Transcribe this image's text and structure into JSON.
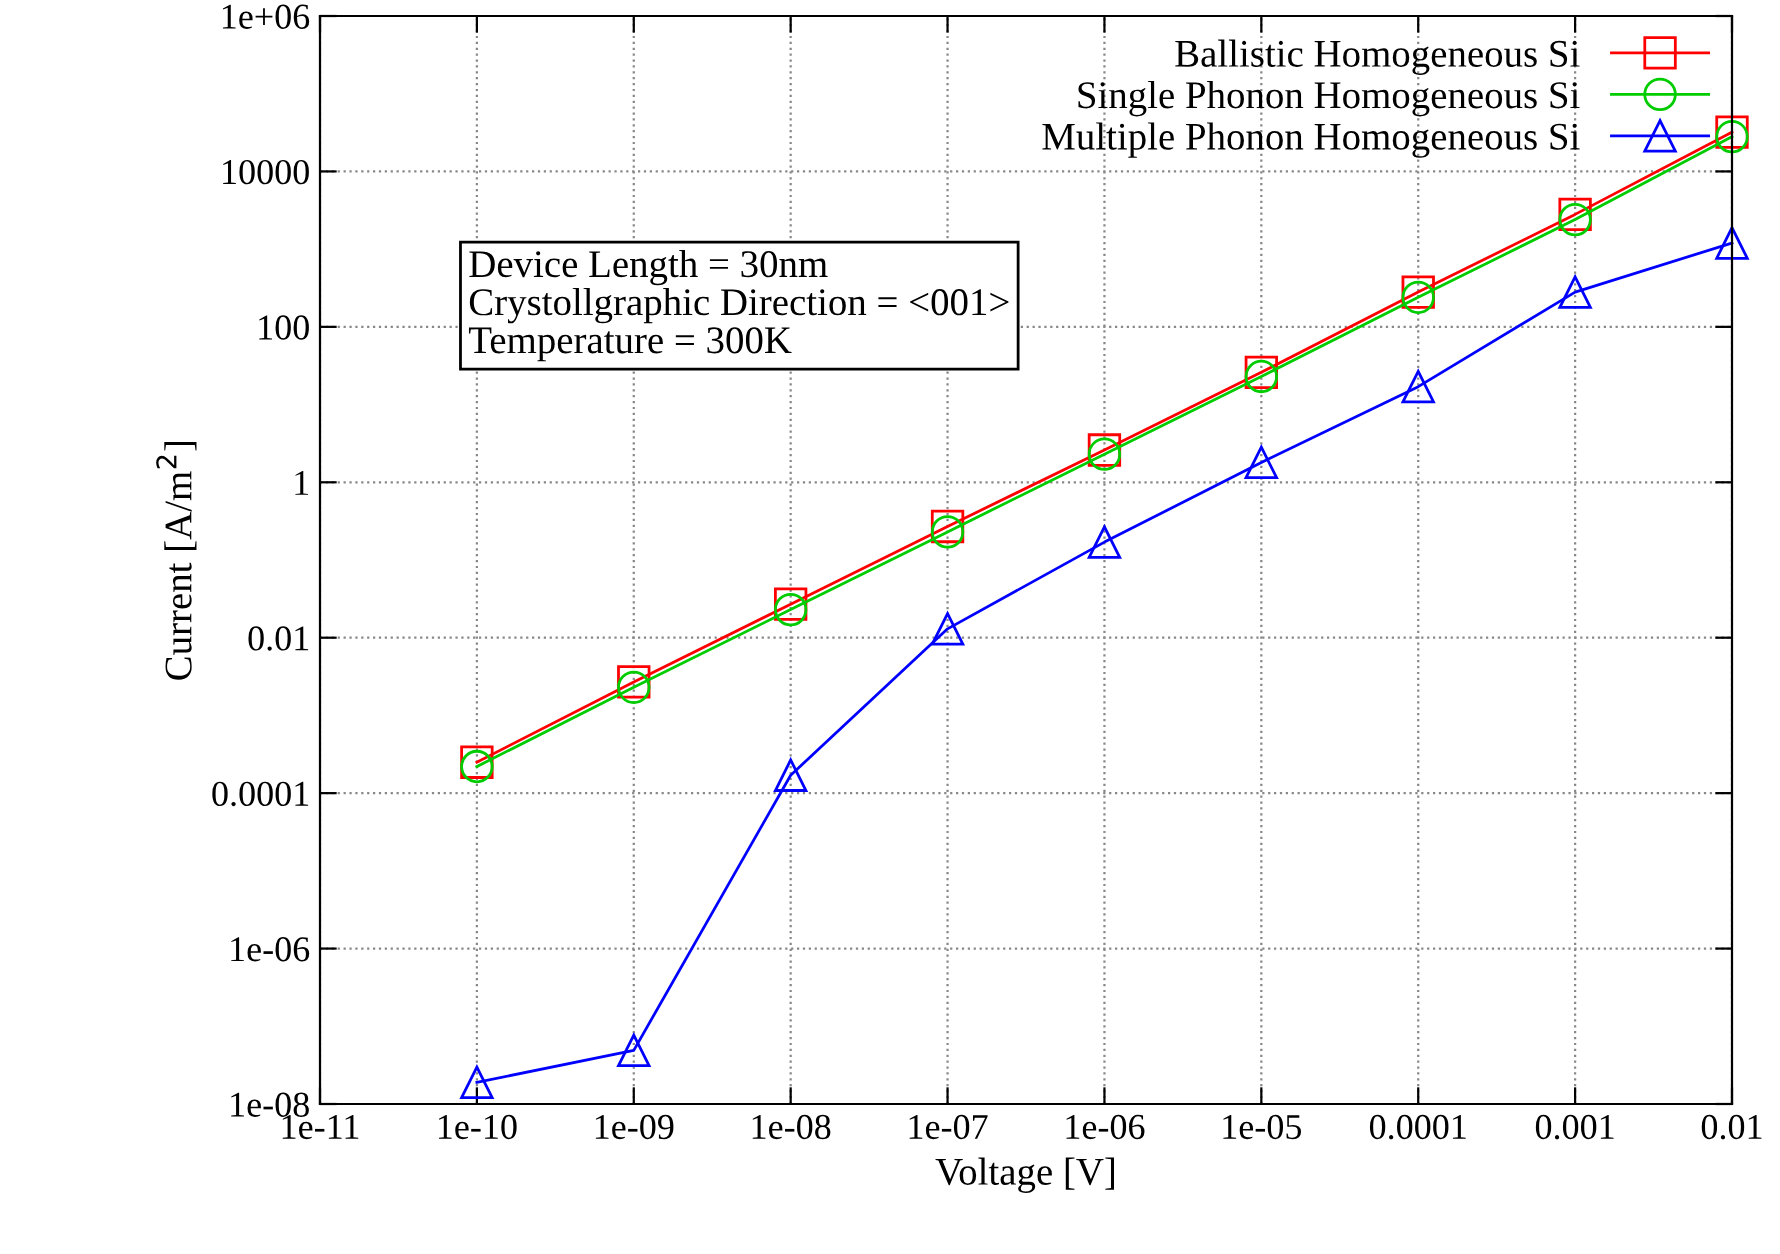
{
  "chart_data": {
    "type": "line",
    "xlabel": "Voltage [V]",
    "ylabel": "Current [A/m$^{2}$]",
    "log": "xy",
    "grid": true,
    "legend": "top right",
    "x": [
      1e-10,
      1e-09,
      1e-08,
      1e-07,
      1e-06,
      1e-05,
      0.0001,
      0.001,
      0.01
    ],
    "xlim": [
      1e-11,
      0.01
    ],
    "xticks": [
      {
        "value": 1e-11,
        "label": "1e-11"
      },
      {
        "value": 1e-10,
        "label": "1e-10"
      },
      {
        "value": 1e-09,
        "label": "1e-09"
      },
      {
        "value": 1e-08,
        "label": "1e-08"
      },
      {
        "value": 1e-07,
        "label": "1e-07"
      },
      {
        "value": 1e-06,
        "label": "1e-06"
      },
      {
        "value": 1e-05,
        "label": "1e-05"
      },
      0.0001,
      0.001,
      0.01
    ],
    "ylim": [
      1e-08,
      1000000.0
    ],
    "yticks": [
      {
        "value": 1e-08,
        "label": "1e-08"
      },
      {
        "value": 1e-06,
        "label": "1e-06"
      },
      0.0001,
      0.01,
      1,
      100,
      10000,
      {
        "value": 1000000.0,
        "label": "1e+06"
      }
    ],
    "series": [
      {
        "name": "Ballistic Homogeneous Si",
        "color": "#ff0000",
        "marker": "square",
        "values": [
          0.00025,
          0.0027,
          0.027,
          0.27,
          2.6,
          26,
          280,
          2800,
          32000
        ]
      },
      {
        "name": "Single Phonon Homogeneous Si",
        "color": "#00cc00",
        "marker": "circle",
        "values": [
          0.00022,
          0.0023,
          0.023,
          0.23,
          2.3,
          23,
          240,
          2400,
          28000
        ]
      },
      {
        "name": "Multiple Phonon Homogeneous Si",
        "color": "#0000ff",
        "marker": "triangle",
        "values": [
          1.9e-08,
          4.9e-08,
          0.00017,
          0.013,
          0.17,
          1.8,
          17,
          280,
          1200
        ]
      }
    ],
    "annotations": [
      "Device Length = 30nm\nCrystollgraphic Direction = <001>\nTemperature = 300K"
    ]
  }
}
